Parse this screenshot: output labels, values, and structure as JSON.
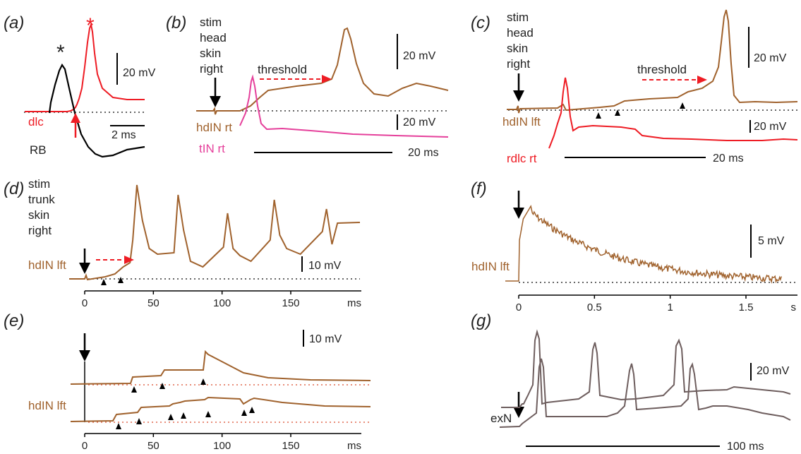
{
  "colors": {
    "brown": "#a0622d",
    "red": "#ee1c24",
    "pink": "#e5409b",
    "black": "#000000",
    "grey": "#6e5e5e",
    "dotted_black": "#333333",
    "dotted_red": "#e0694e"
  },
  "panels": {
    "a": {
      "label": "(a)",
      "star_black": "*",
      "star_red": "*",
      "scale_v": "20 mV",
      "scale_t": "2 ms",
      "trace_red": "dlc",
      "trace_black": "RB"
    },
    "b": {
      "label": "(b)",
      "stim": [
        "stim",
        "head",
        "skin",
        "right"
      ],
      "threshold": "threshold",
      "scale_v1": "20 mV",
      "scale_v2": "20 mV",
      "trace_1": "hdIN rt",
      "trace_2": "tIN rt",
      "scale_t": "20 ms"
    },
    "c": {
      "label": "(c)",
      "stim": [
        "stim",
        "head",
        "skin",
        "right"
      ],
      "threshold": "threshold",
      "scale_v1": "20 mV",
      "scale_v2": "20 mV",
      "trace_1": "hdIN lft",
      "trace_2": "rdlc rt",
      "scale_t": "20 ms"
    },
    "d": {
      "label": "(d)",
      "stim": [
        "stim",
        "trunk",
        "skin",
        "right"
      ],
      "trace": "hdIN lft",
      "scale_v": "10 mV"
    },
    "e": {
      "label": "(e)",
      "trace": "hdIN lft",
      "scale_v": "10 mV"
    },
    "f": {
      "label": "(f)",
      "trace": "hdIN lft",
      "scale_v": "5 mV"
    },
    "g": {
      "label": "(g)",
      "trace": "exN",
      "scale_v": "20 mV",
      "scale_t": "100 ms"
    }
  },
  "chart_data": [
    {
      "id": "d",
      "type": "line",
      "xlabel": "ms",
      "xlim": [
        0,
        175
      ],
      "x_ticks": [
        "0",
        "50",
        "100",
        "150"
      ],
      "spike_times": [
        38,
        68,
        104,
        138,
        176
      ]
    },
    {
      "id": "e",
      "type": "line",
      "xlabel": "ms",
      "xlim": [
        0,
        175
      ],
      "x_ticks": [
        "0",
        "50",
        "100",
        "150"
      ]
    },
    {
      "id": "f",
      "type": "line",
      "xlabel": "s",
      "xlim": [
        0,
        1.75
      ],
      "x_ticks": [
        "0",
        "0.5",
        "1",
        "1.5"
      ]
    }
  ]
}
